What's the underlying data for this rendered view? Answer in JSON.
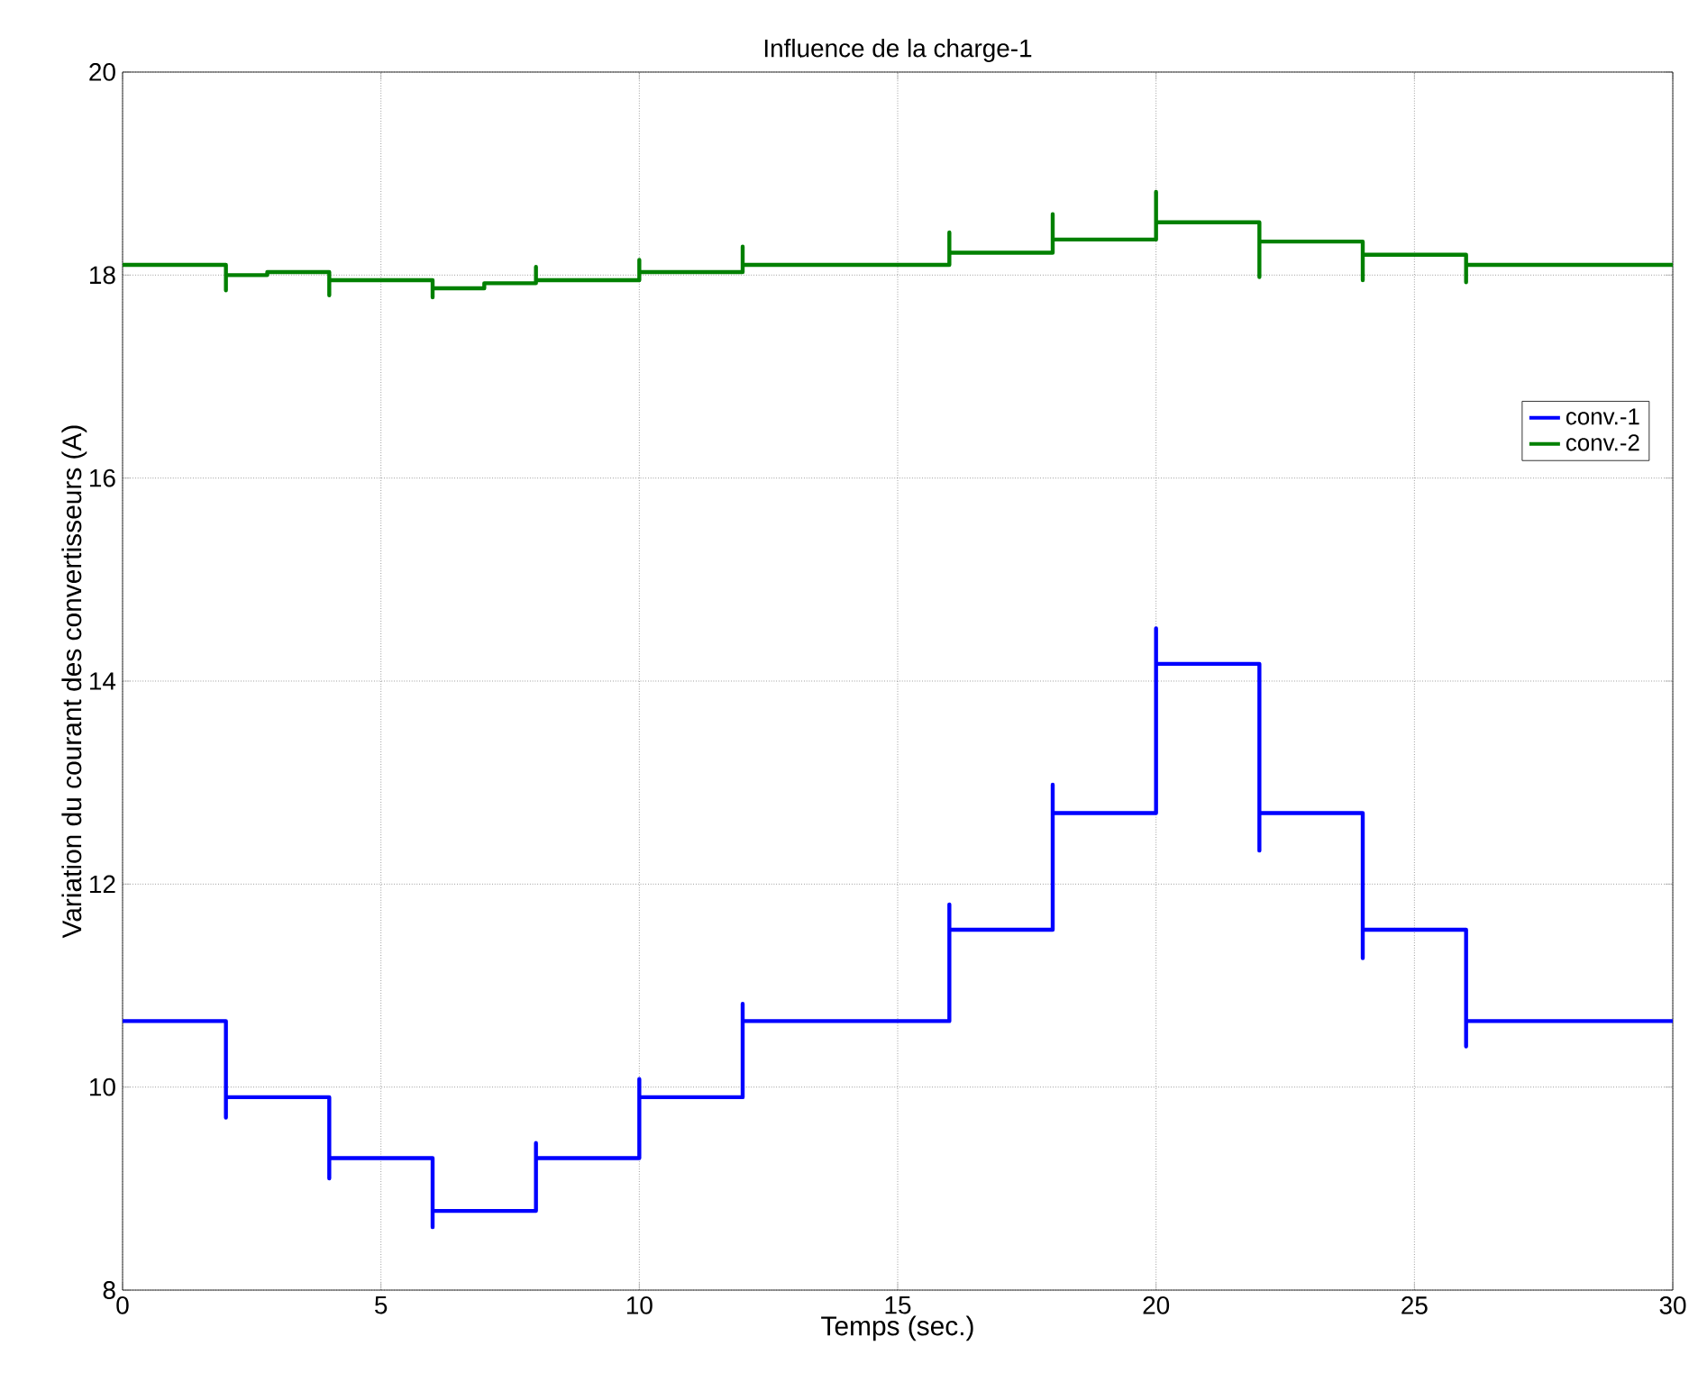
{
  "chart_data": {
    "type": "line",
    "title": "Influence de la charge-1",
    "xlabel": "Temps (sec.)",
    "ylabel": "Variation du courant des convertisseurs (A)",
    "xlim": [
      0,
      30
    ],
    "ylim": [
      8,
      20
    ],
    "xticks": [
      0,
      5,
      10,
      15,
      20,
      25,
      30
    ],
    "yticks": [
      8,
      10,
      12,
      14,
      16,
      18,
      20
    ],
    "grid": true,
    "legend": "right",
    "line_style": "solid",
    "marker": "none",
    "series": [
      {
        "name": "conv.-1",
        "color": "#0000ff",
        "x": [
          0,
          2,
          2,
          2,
          4,
          4,
          4,
          6,
          6,
          6,
          8,
          8,
          8,
          10,
          10,
          10,
          12,
          12,
          12,
          16,
          16,
          16,
          18,
          18,
          18,
          20,
          20,
          20,
          20,
          22,
          22,
          22,
          24,
          24,
          24,
          26,
          26,
          26,
          30
        ],
        "values": [
          10.65,
          10.65,
          9.7,
          9.9,
          9.9,
          9.1,
          9.3,
          9.3,
          8.62,
          8.78,
          8.78,
          9.45,
          9.3,
          9.3,
          10.08,
          9.9,
          9.9,
          10.82,
          10.65,
          10.65,
          11.8,
          11.55,
          11.55,
          12.98,
          12.7,
          12.7,
          14.52,
          13.92,
          14.17,
          14.17,
          12.33,
          12.7,
          12.7,
          11.27,
          11.55,
          11.55,
          10.4,
          10.65,
          10.65
        ]
      },
      {
        "name": "conv.-2",
        "color": "#008000",
        "x": [
          0,
          2,
          2,
          2,
          2.8,
          2.8,
          4,
          4,
          4,
          6,
          6,
          6,
          7,
          7,
          8,
          8,
          8,
          10,
          10,
          10,
          12,
          12,
          12,
          16,
          16,
          16,
          18,
          18,
          18,
          20,
          20,
          20,
          22,
          22,
          22,
          24,
          24,
          24,
          26,
          26,
          26,
          30
        ],
        "values": [
          18.1,
          18.1,
          17.85,
          18.0,
          18.0,
          18.03,
          18.03,
          17.8,
          17.95,
          17.95,
          17.78,
          17.87,
          17.87,
          17.92,
          17.92,
          18.08,
          17.95,
          17.95,
          18.15,
          18.03,
          18.03,
          18.28,
          18.1,
          18.1,
          18.42,
          18.22,
          18.22,
          18.6,
          18.35,
          18.35,
          18.82,
          18.52,
          18.52,
          17.98,
          18.33,
          18.33,
          17.95,
          18.2,
          18.2,
          17.93,
          18.1,
          18.1
        ]
      }
    ]
  }
}
